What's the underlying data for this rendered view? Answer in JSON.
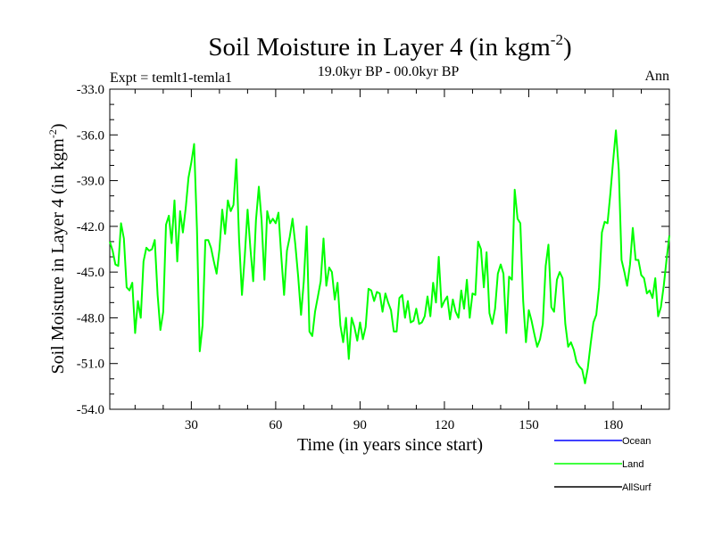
{
  "chart_data": {
    "type": "line",
    "title": "Soil Moisture in Layer 4 (in kgm",
    "title_sup": "-2",
    "title_end": ")",
    "subtitle_left": "Expt = temlt1-temla1",
    "subtitle_center": "19.0kyr BP - 00.0kyr BP",
    "subtitle_right": "Ann",
    "xlabel": "Time (in years since start)",
    "ylabel": "Soil Moisture in Layer 4 (in kgm",
    "ylabel_sup": "-2",
    "ylabel_end": ")",
    "xlim": [
      1,
      200
    ],
    "ylim": [
      -54.0,
      -33.0
    ],
    "xticks": [
      30,
      60,
      90,
      120,
      150,
      180
    ],
    "xtick_labels": [
      "30",
      "60",
      "90",
      "120",
      "150",
      "180"
    ],
    "yticks": [
      -54.0,
      -51.0,
      -48.0,
      -45.0,
      -42.0,
      -39.0,
      -36.0,
      -33.0
    ],
    "ytick_labels": [
      "-54.0",
      "-51.0",
      "-48.0",
      "-45.0",
      "-42.0",
      "-39.0",
      "-36.0",
      "-33.0"
    ],
    "legend": [
      {
        "name": "Ocean",
        "color": "#0000ff"
      },
      {
        "name": "Land",
        "color": "#00ff00"
      },
      {
        "name": "AllSurf",
        "color": "#000000"
      }
    ],
    "series": [
      {
        "name": "Land",
        "color": "#00ff00",
        "x": [
          1,
          2,
          3,
          4,
          5,
          6,
          7,
          8,
          9,
          10,
          11,
          12,
          13,
          14,
          15,
          16,
          17,
          18,
          19,
          20,
          21,
          22,
          23,
          24,
          25,
          26,
          27,
          28,
          29,
          30,
          31,
          32,
          33,
          34,
          35,
          36,
          37,
          38,
          39,
          40,
          41,
          42,
          43,
          44,
          45,
          46,
          47,
          48,
          49,
          50,
          51,
          52,
          53,
          54,
          55,
          56,
          57,
          58,
          59,
          60,
          61,
          62,
          63,
          64,
          65,
          66,
          67,
          68,
          69,
          70,
          71,
          72,
          73,
          74,
          75,
          76,
          77,
          78,
          79,
          80,
          81,
          82,
          83,
          84,
          85,
          86,
          87,
          88,
          89,
          90,
          91,
          92,
          93,
          94,
          95,
          96,
          97,
          98,
          99,
          100,
          101,
          102,
          103,
          104,
          105,
          106,
          107,
          108,
          109,
          110,
          111,
          112,
          113,
          114,
          115,
          116,
          117,
          118,
          119,
          120,
          121,
          122,
          123,
          124,
          125,
          126,
          127,
          128,
          129,
          130,
          131,
          132,
          133,
          134,
          135,
          136,
          137,
          138,
          139,
          140,
          141,
          142,
          143,
          144,
          145,
          146,
          147,
          148,
          149,
          150,
          151,
          152,
          153,
          154,
          155,
          156,
          157,
          158,
          159,
          160,
          161,
          162,
          163,
          164,
          165,
          166,
          167,
          168,
          169,
          170,
          171,
          172,
          173,
          174,
          175,
          176,
          177,
          178,
          179,
          180,
          181,
          182,
          183,
          184,
          185,
          186,
          187,
          188,
          189,
          190,
          191,
          192,
          193,
          194,
          195,
          196,
          197,
          198,
          199,
          200
        ],
        "values": [
          -43.0,
          -43.6,
          -44.5,
          -44.6,
          -41.8,
          -42.8,
          -46.0,
          -46.2,
          -45.7,
          -49.0,
          -46.9,
          -48.0,
          -44.3,
          -43.4,
          -43.6,
          -43.5,
          -42.9,
          -46.5,
          -48.8,
          -47.6,
          -41.9,
          -41.3,
          -43.1,
          -40.3,
          -44.3,
          -41.0,
          -42.4,
          -40.8,
          -38.8,
          -37.8,
          -36.6,
          -42.2,
          -50.2,
          -48.5,
          -42.9,
          -42.9,
          -43.4,
          -44.3,
          -45.1,
          -43.5,
          -40.9,
          -42.5,
          -40.3,
          -41.0,
          -40.6,
          -37.6,
          -42.9,
          -46.5,
          -44.0,
          -40.9,
          -43.4,
          -45.6,
          -41.6,
          -39.4,
          -41.6,
          -45.5,
          -41.0,
          -41.8,
          -41.5,
          -41.8,
          -41.1,
          -44.0,
          -46.5,
          -43.6,
          -42.7,
          -41.5,
          -43.2,
          -45.3,
          -47.8,
          -45.6,
          -42.0,
          -48.9,
          -49.2,
          -47.6,
          -46.6,
          -45.6,
          -42.8,
          -45.9,
          -44.7,
          -45.0,
          -46.8,
          -45.7,
          -48.5,
          -49.6,
          -48.0,
          -50.7,
          -48.0,
          -48.6,
          -49.5,
          -48.3,
          -49.4,
          -48.6,
          -46.1,
          -46.2,
          -46.9,
          -46.3,
          -46.4,
          -47.6,
          -46.4,
          -47.0,
          -47.5,
          -48.9,
          -48.9,
          -46.7,
          -46.5,
          -48.0,
          -46.9,
          -48.3,
          -48.2,
          -47.4,
          -48.4,
          -48.3,
          -47.9,
          -46.6,
          -47.9,
          -45.7,
          -47.0,
          -44.0,
          -47.3,
          -46.9,
          -46.6,
          -48.1,
          -46.8,
          -47.6,
          -48.0,
          -46.2,
          -47.4,
          -45.5,
          -48.0,
          -46.4,
          -46.5,
          -43.0,
          -43.5,
          -46.0,
          -43.7,
          -47.7,
          -48.4,
          -47.4,
          -45.1,
          -44.5,
          -45.1,
          -49.0,
          -45.3,
          -45.5,
          -39.6,
          -41.5,
          -41.8,
          -46.9,
          -49.6,
          -47.5,
          -48.2,
          -49.1,
          -49.9,
          -49.4,
          -48.4,
          -44.6,
          -43.2,
          -47.3,
          -47.6,
          -45.5,
          -45.0,
          -45.4,
          -48.4,
          -49.9,
          -49.6,
          -50.1,
          -50.9,
          -51.2,
          -51.4,
          -52.3,
          -51.3,
          -49.7,
          -48.3,
          -47.8,
          -46.0,
          -42.4,
          -41.7,
          -41.8,
          -39.9,
          -37.7,
          -35.7,
          -38.3,
          -44.2,
          -45.0,
          -45.9,
          -44.5,
          -42.1,
          -44.2,
          -44.2,
          -45.2,
          -45.4,
          -46.4,
          -46.2,
          -46.7,
          -45.4,
          -47.9,
          -47.3,
          -45.9,
          -44.2,
          -42.6
        ]
      }
    ]
  }
}
